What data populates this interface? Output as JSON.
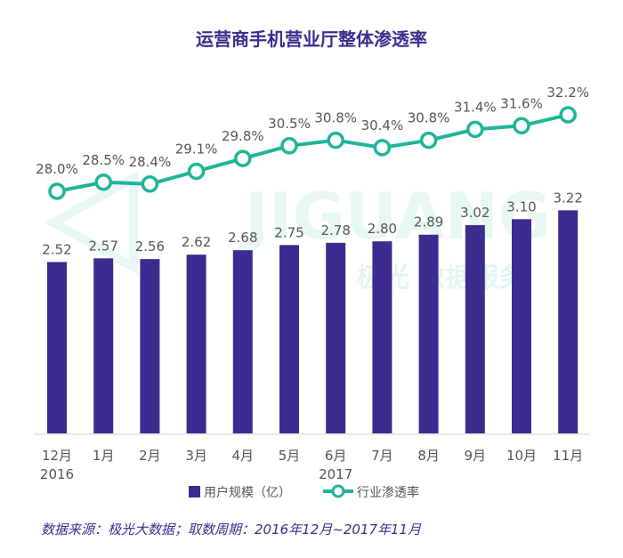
{
  "watermark": {
    "latin": "JIGUANG",
    "cjk": "极光 数据服务"
  },
  "source_note": "数据来源：极光大数据；取数周期：2016年12月~2017年11月",
  "colors": {
    "bar": "#3d2b8f",
    "line": "#1fb597",
    "title": "#3b2d8f",
    "label": "#555555"
  },
  "chart_data": {
    "type": "bar",
    "title": "运营商手机营业厅整体渗透率",
    "categories": [
      "12月\n2016",
      "1月",
      "2月",
      "3月",
      "4月",
      "5月",
      "6月\n2017",
      "7月",
      "8月",
      "9月",
      "10月",
      "11月"
    ],
    "series": [
      {
        "name": "用户规模（亿）",
        "kind": "bar",
        "values": [
          2.52,
          2.57,
          2.56,
          2.62,
          2.68,
          2.75,
          2.78,
          2.8,
          2.89,
          3.02,
          3.1,
          3.22
        ],
        "labels": [
          "2.52",
          "2.57",
          "2.56",
          "2.62",
          "2.68",
          "2.75",
          "2.78",
          "2.80",
          "2.89",
          "3.02",
          "3.10",
          "3.22"
        ]
      },
      {
        "name": "行业渗透率",
        "kind": "line",
        "values": [
          28.0,
          28.5,
          28.4,
          29.1,
          29.8,
          30.5,
          30.8,
          30.4,
          30.8,
          31.4,
          31.6,
          32.2
        ],
        "labels": [
          "28.0%",
          "28.5%",
          "28.4%",
          "29.1%",
          "29.8%",
          "30.5%",
          "30.8%",
          "30.4%",
          "30.8%",
          "31.4%",
          "31.6%",
          "32.2%"
        ]
      }
    ],
    "legend": "bottom-center",
    "grid": false
  }
}
